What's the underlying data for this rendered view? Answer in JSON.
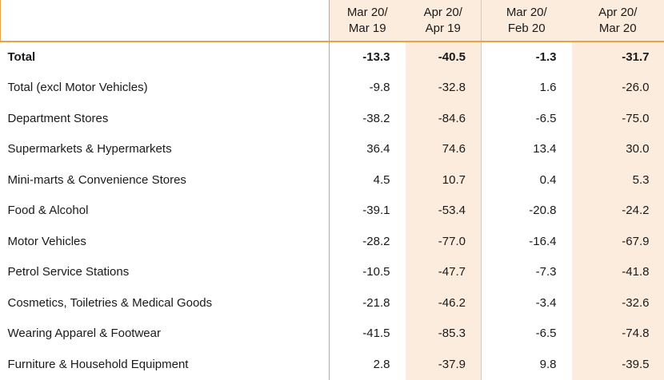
{
  "header": {
    "col1": [
      "Mar 20/",
      "Mar 19"
    ],
    "col2": [
      "Apr 20/",
      "Apr 19"
    ],
    "col3": [
      "Mar 20/",
      "Feb 20"
    ],
    "col4": [
      "Apr 20/",
      "Mar 20"
    ]
  },
  "rows": [
    {
      "label": "Total",
      "values": [
        "-13.3",
        "-40.5",
        "-1.3",
        "-31.7"
      ],
      "bold": true
    },
    {
      "label": "Total (excl Motor Vehicles)",
      "values": [
        "-9.8",
        "-32.8",
        "1.6",
        "-26.0"
      ]
    },
    {
      "label": "Department Stores",
      "values": [
        "-38.2",
        "-84.6",
        "-6.5",
        "-75.0"
      ]
    },
    {
      "label": "Supermarkets & Hypermarkets",
      "values": [
        "36.4",
        "74.6",
        "13.4",
        "30.0"
      ]
    },
    {
      "label": "Mini-marts & Convenience Stores",
      "values": [
        "4.5",
        "10.7",
        "0.4",
        "5.3"
      ]
    },
    {
      "label": "Food & Alcohol",
      "values": [
        "-39.1",
        "-53.4",
        "-20.8",
        "-24.2"
      ]
    },
    {
      "label": "Motor Vehicles",
      "values": [
        "-28.2",
        "-77.0",
        "-16.4",
        "-67.9"
      ]
    },
    {
      "label": "Petrol Service Stations",
      "values": [
        "-10.5",
        "-47.7",
        "-7.3",
        "-41.8"
      ]
    },
    {
      "label": "Cosmetics, Toiletries & Medical Goods",
      "values": [
        "-21.8",
        "-46.2",
        "-3.4",
        "-32.6"
      ]
    },
    {
      "label": "Wearing Apparel & Footwear",
      "values": [
        "-41.5",
        "-85.3",
        "-6.5",
        "-74.8"
      ]
    },
    {
      "label": "Furniture & Household Equipment",
      "values": [
        "2.8",
        "-37.9",
        "9.8",
        "-39.5"
      ]
    }
  ]
}
